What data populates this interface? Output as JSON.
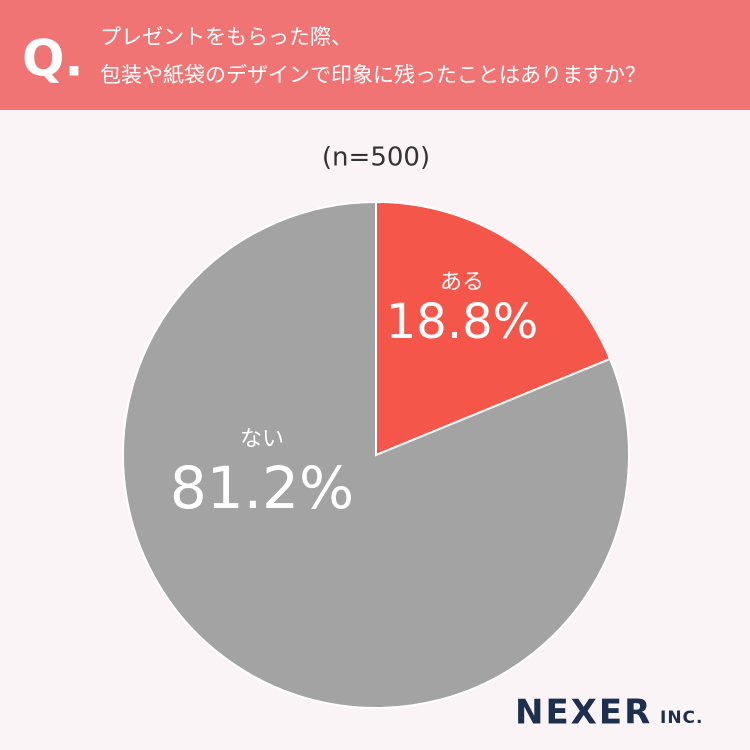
{
  "chart_data": {
    "type": "pie",
    "question_mark": "Q.",
    "title": [
      "プレゼントをもらった際、",
      "包装や紙袋のデザインで印象に残ったことはありますか？"
    ],
    "subtitle": "(n=500)",
    "categories": [
      "ある",
      "ない"
    ],
    "values": [
      18.8,
      81.2
    ],
    "value_labels": [
      "18.8%",
      "81.2%"
    ],
    "colors": [
      "#f5564a",
      "#a3a3a3"
    ],
    "brand": "NEXER",
    "brand_suffix": "INC."
  }
}
